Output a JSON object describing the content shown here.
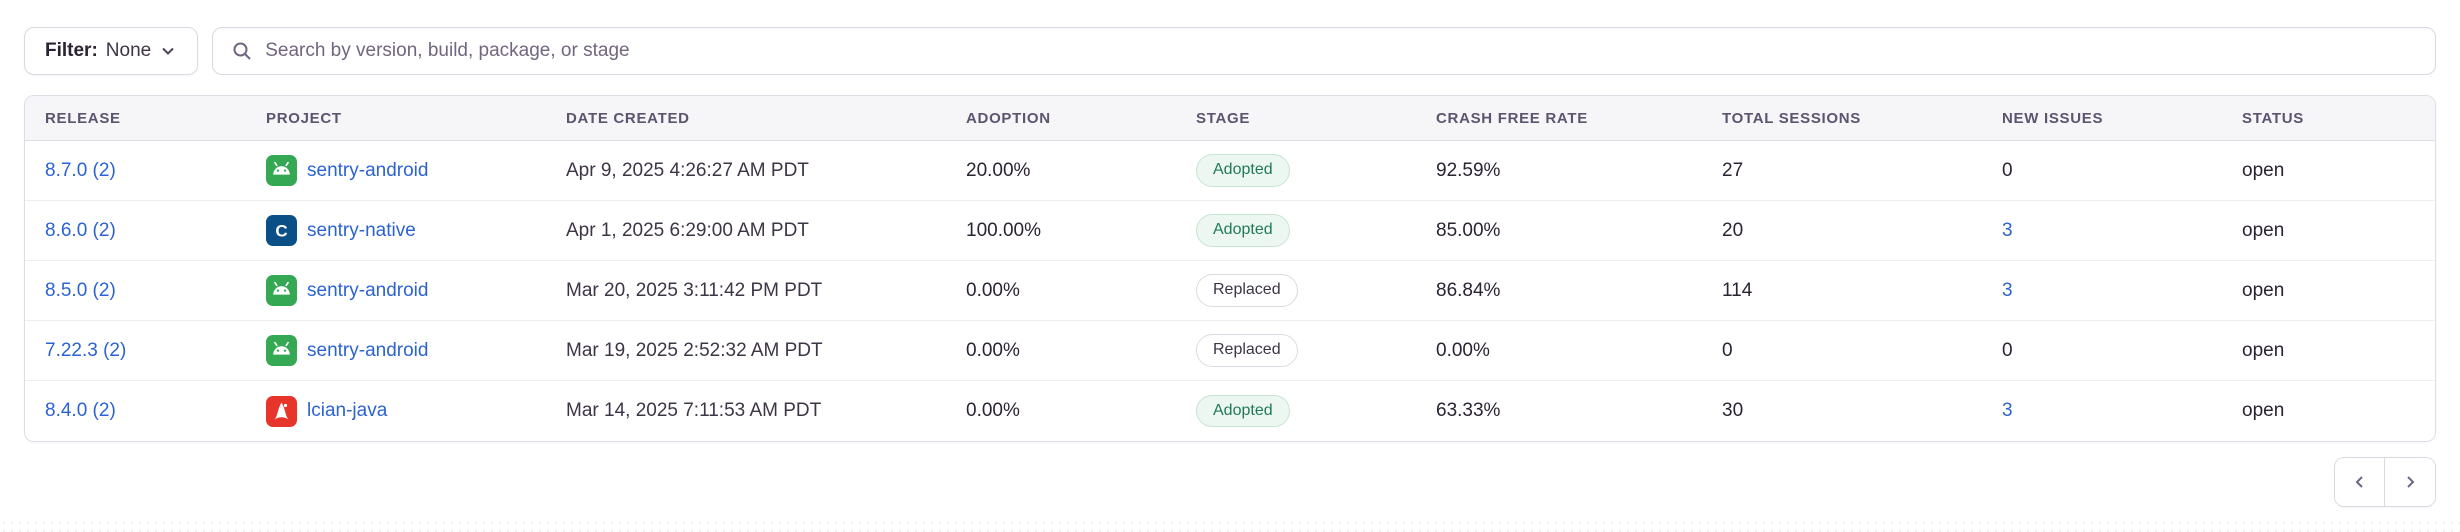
{
  "filter": {
    "label": "Filter:",
    "value": "None"
  },
  "search": {
    "placeholder": "Search by version, build, package, or stage"
  },
  "table": {
    "columns": [
      "Release",
      "Project",
      "Date Created",
      "Adoption",
      "Stage",
      "Crash Free Rate",
      "Total Sessions",
      "New Issues",
      "Status"
    ],
    "rows": [
      {
        "release": "8.7.0",
        "commit_count": "(2)",
        "project": "sentry-android",
        "platform": "android",
        "date": "Apr 9, 2025 4:26:27 AM PDT",
        "adoption": "20.00%",
        "stage": "Adopted",
        "crash_free": "92.59%",
        "sessions": "27",
        "new_issues": "0",
        "new_issues_link": false,
        "status": "open"
      },
      {
        "release": "8.6.0",
        "commit_count": "(2)",
        "project": "sentry-native",
        "platform": "c",
        "date": "Apr 1, 2025 6:29:00 AM PDT",
        "adoption": "100.00%",
        "stage": "Adopted",
        "crash_free": "85.00%",
        "sessions": "20",
        "new_issues": "3",
        "new_issues_link": true,
        "status": "open"
      },
      {
        "release": "8.5.0",
        "commit_count": "(2)",
        "project": "sentry-android",
        "platform": "android",
        "date": "Mar 20, 2025 3:11:42 PM PDT",
        "adoption": "0.00%",
        "stage": "Replaced",
        "crash_free": "86.84%",
        "sessions": "114",
        "new_issues": "3",
        "new_issues_link": true,
        "status": "open"
      },
      {
        "release": "7.22.3",
        "commit_count": "(2)",
        "project": "sentry-android",
        "platform": "android",
        "date": "Mar 19, 2025 2:52:32 AM PDT",
        "adoption": "0.00%",
        "stage": "Replaced",
        "crash_free": "0.00%",
        "sessions": "0",
        "new_issues": "0",
        "new_issues_link": false,
        "status": "open"
      },
      {
        "release": "8.4.0",
        "commit_count": "(2)",
        "project": "lcian-java",
        "platform": "java",
        "date": "Mar 14, 2025 7:11:53 AM PDT",
        "adoption": "0.00%",
        "stage": "Adopted",
        "crash_free": "63.33%",
        "sessions": "30",
        "new_issues": "3",
        "new_issues_link": true,
        "status": "open"
      }
    ]
  },
  "pagination": {
    "previous": "previous-page",
    "next": "next-page"
  },
  "colors": {
    "link_blue": "#2b62d4",
    "adopted_green": "#20795a",
    "adopted_bg": "#edf7f1",
    "header_bg": "#f6f5f8",
    "border": "#e0dce5",
    "android_green": "#34a853",
    "c_navy": "#0b4f87",
    "java_red": "#e8352b"
  }
}
